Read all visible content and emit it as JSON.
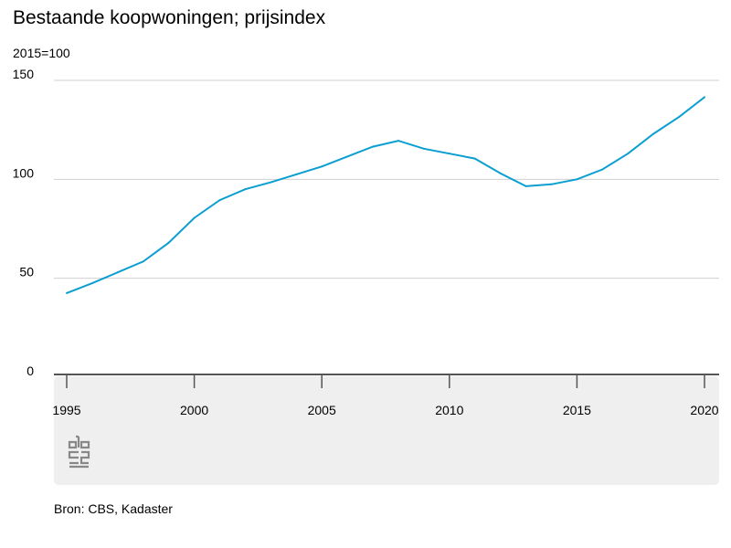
{
  "title": "Bestaande koopwoningen; prijsindex",
  "unit_label": "2015=100",
  "source": "Bron: CBS, Kadaster",
  "colors": {
    "line": "#0b9fd1",
    "grid": "#d0d0d0",
    "axis": "#555555",
    "footer_bg": "#efefef",
    "logo": "#888888"
  },
  "logo_icon": "cbs-logo-icon",
  "chart_data": {
    "type": "line",
    "title": "Bestaande koopwoningen; prijsindex",
    "ylabel": "2015=100",
    "xlabel": "",
    "xlim": [
      1995,
      2020
    ],
    "ylim": [
      0,
      150
    ],
    "yticks": [
      0,
      50,
      100,
      150
    ],
    "xticks": [
      1995,
      2000,
      2005,
      2010,
      2015,
      2020
    ],
    "grid": true,
    "series": [
      {
        "x": [
          1995,
          1996,
          1997,
          1998,
          1999,
          2000,
          2001,
          2002,
          2003,
          2004,
          2005,
          2006,
          2007,
          2008,
          2009,
          2010,
          2011,
          2012,
          2013,
          2014,
          2015,
          2016,
          2017,
          2018,
          2019,
          2020
        ],
        "values": [
          42.5,
          47.5,
          53,
          58.5,
          68,
          80.5,
          89.5,
          95,
          98.5,
          102.5,
          106.5,
          111.5,
          116.5,
          119.5,
          115.5,
          113,
          110.5,
          103,
          96.5,
          97.5,
          100,
          105,
          113,
          123,
          131.5,
          141.5
        ]
      }
    ]
  }
}
